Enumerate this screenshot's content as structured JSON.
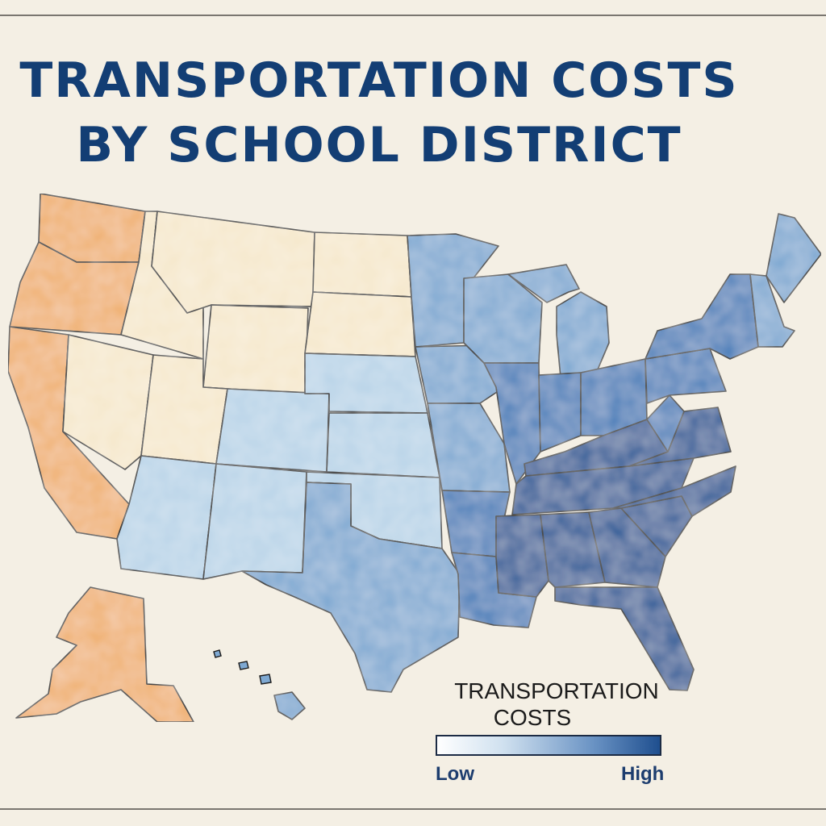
{
  "title_lines": [
    "TRANSPORTATION COSTS",
    "BY SCHOOL DISTRICT"
  ],
  "legend": {
    "title_lines": [
      "TRANSPORTATION",
      "COSTS"
    ],
    "low_label": "Low",
    "high_label": "High",
    "colors": {
      "low": "#ffffff",
      "high": "#1f4f8f"
    }
  },
  "map": {
    "palette": {
      "orange": "#f0b070",
      "cream": "#f6e8cc",
      "light_blue": "#b9d4e8",
      "mid_blue": "#7fa9d2",
      "blue": "#4a7fba",
      "dark_blue": "#2a5b98",
      "border": "#1a1a1a",
      "background": "#f4efe4"
    },
    "regions": [
      {
        "name": "Washington",
        "level": "orange"
      },
      {
        "name": "Oregon",
        "level": "orange"
      },
      {
        "name": "California",
        "level": "orange"
      },
      {
        "name": "Nevada",
        "level": "cream"
      },
      {
        "name": "Idaho",
        "level": "cream"
      },
      {
        "name": "Montana",
        "level": "cream"
      },
      {
        "name": "Wyoming",
        "level": "cream"
      },
      {
        "name": "Utah",
        "level": "cream"
      },
      {
        "name": "Arizona",
        "level": "light_blue"
      },
      {
        "name": "Colorado",
        "level": "light_blue"
      },
      {
        "name": "New Mexico",
        "level": "light_blue"
      },
      {
        "name": "North Dakota",
        "level": "cream"
      },
      {
        "name": "South Dakota",
        "level": "cream"
      },
      {
        "name": "Nebraska",
        "level": "light_blue"
      },
      {
        "name": "Kansas",
        "level": "light_blue"
      },
      {
        "name": "Oklahoma",
        "level": "light_blue"
      },
      {
        "name": "Texas",
        "level": "mid_blue"
      },
      {
        "name": "Minnesota",
        "level": "mid_blue"
      },
      {
        "name": "Iowa",
        "level": "mid_blue"
      },
      {
        "name": "Missouri",
        "level": "mid_blue"
      },
      {
        "name": "Arkansas",
        "level": "blue"
      },
      {
        "name": "Louisiana",
        "level": "blue"
      },
      {
        "name": "Wisconsin",
        "level": "mid_blue"
      },
      {
        "name": "Illinois",
        "level": "blue"
      },
      {
        "name": "Michigan",
        "level": "mid_blue"
      },
      {
        "name": "Indiana",
        "level": "blue"
      },
      {
        "name": "Ohio",
        "level": "blue"
      },
      {
        "name": "Kentucky",
        "level": "dark_blue"
      },
      {
        "name": "Tennessee",
        "level": "dark_blue"
      },
      {
        "name": "Mississippi",
        "level": "dark_blue"
      },
      {
        "name": "Alabama",
        "level": "dark_blue"
      },
      {
        "name": "Georgia",
        "level": "dark_blue"
      },
      {
        "name": "Florida",
        "level": "dark_blue"
      },
      {
        "name": "South Carolina",
        "level": "dark_blue"
      },
      {
        "name": "North Carolina",
        "level": "dark_blue"
      },
      {
        "name": "Virginia",
        "level": "dark_blue"
      },
      {
        "name": "West Virginia",
        "level": "blue"
      },
      {
        "name": "Pennsylvania",
        "level": "blue"
      },
      {
        "name": "New York",
        "level": "blue"
      },
      {
        "name": "New England",
        "level": "mid_blue"
      },
      {
        "name": "Maine",
        "level": "mid_blue"
      },
      {
        "name": "Alaska",
        "level": "orange"
      },
      {
        "name": "Hawaii",
        "level": "mid_blue"
      }
    ]
  }
}
